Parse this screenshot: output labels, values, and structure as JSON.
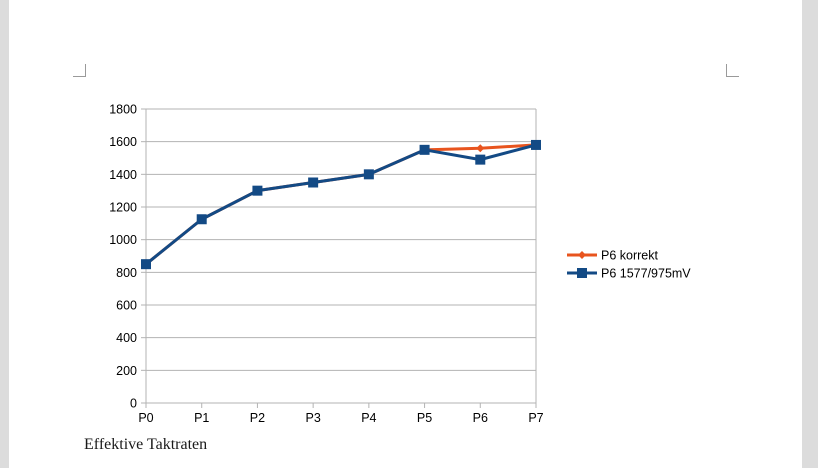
{
  "chart_data": {
    "type": "line",
    "categories": [
      "P0",
      "P1",
      "P2",
      "P3",
      "P4",
      "P5",
      "P6",
      "P7"
    ],
    "ylim": [
      0,
      1800
    ],
    "yticks": [
      0,
      200,
      400,
      600,
      800,
      1000,
      1200,
      1400,
      1600,
      1800
    ],
    "grid": true,
    "legend_position": "right",
    "series": [
      {
        "name": "P6 korrekt",
        "color": "#e8541e",
        "marker": "diamond",
        "values": [
          850,
          1125,
          1300,
          1350,
          1400,
          1550,
          1560,
          1580
        ]
      },
      {
        "name": "P6 1577/975mV",
        "color": "#134a85",
        "marker": "square",
        "values": [
          850,
          1125,
          1300,
          1350,
          1400,
          1550,
          1490,
          1580
        ]
      }
    ]
  },
  "caption": "Effektive Taktraten"
}
